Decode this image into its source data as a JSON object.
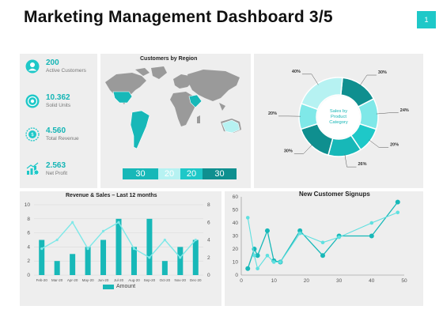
{
  "header": {
    "title": "Marketing Management Dashboard 3/5",
    "page_number": "1"
  },
  "colors": {
    "accent": "#1ec8c8",
    "teal_dark": "#0f8f8f",
    "teal": "#17b8b8",
    "teal_light": "#7fe8e8",
    "teal_pale": "#b6f2f2"
  },
  "kpis": [
    {
      "value": "200",
      "label": "Active Customers",
      "icon": "customer-icon"
    },
    {
      "value": "10.362",
      "label": "Solid Units",
      "icon": "target-icon"
    },
    {
      "value": "4.560",
      "label": "Total Revenue",
      "icon": "revenue-icon"
    },
    {
      "value": "2.563",
      "label": "Net Profit",
      "icon": "profit-chart-icon"
    }
  ],
  "map": {
    "title": "Customers by Region",
    "segments": [
      "30",
      "20",
      "20",
      "30"
    ]
  },
  "chart_data": [
    {
      "type": "pie",
      "variant": "donut",
      "center_label": "Sales by Product Category",
      "values": [
        30,
        24,
        20,
        26,
        30,
        20,
        40
      ],
      "labels": [
        "30%",
        "24%",
        "20%",
        "26%",
        "30%",
        "20%",
        "40%"
      ],
      "colors": [
        "#0f8f8f",
        "#7fe8e8",
        "#1ec8c8",
        "#17b8b8",
        "#0f8f8f",
        "#7fe8e8",
        "#b6f2f2"
      ]
    },
    {
      "type": "bar",
      "title": "Revenue & Sales – Last 12 months",
      "categories": [
        "Feb-20",
        "Mar-20",
        "Apr-20",
        "May-20",
        "Jun-20",
        "Jul-20",
        "Aug-20",
        "Sep-20",
        "Oct-20",
        "Nov-20",
        "Dec-20"
      ],
      "series": [
        {
          "name": "Amount",
          "kind": "bar",
          "axis": "left",
          "values": [
            5,
            2,
            3,
            4,
            5,
            8,
            4,
            8,
            2,
            4,
            5
          ]
        },
        {
          "kind": "line",
          "axis": "right",
          "values": [
            3,
            4,
            6,
            3,
            5,
            6,
            3,
            2,
            4,
            2,
            4
          ]
        }
      ],
      "ylim_left": [
        0,
        10
      ],
      "yticks_left": [
        0,
        2,
        4,
        6,
        8,
        10
      ],
      "ylim_right": [
        0,
        8
      ],
      "yticks_right": [
        0,
        2,
        4,
        6,
        8
      ],
      "legend": "bottom"
    },
    {
      "type": "line",
      "title": "New Customer Signups",
      "series": [
        {
          "x": [
            2,
            4,
            5,
            8,
            10,
            12,
            18,
            25,
            30,
            40,
            48
          ],
          "y": [
            5,
            20,
            15,
            34,
            11,
            10,
            34,
            15,
            30,
            30,
            56
          ]
        },
        {
          "x": [
            2,
            4,
            5,
            8,
            10,
            12,
            18,
            25,
            30,
            40,
            48
          ],
          "y": [
            44,
            15,
            5,
            15,
            10,
            10,
            32,
            25,
            29,
            40,
            48
          ]
        }
      ],
      "xlim": [
        0,
        50
      ],
      "xticks": [
        0,
        10,
        20,
        30,
        40,
        50
      ],
      "ylim": [
        0,
        60
      ],
      "yticks": [
        0,
        10,
        20,
        30,
        40,
        50,
        60
      ]
    }
  ]
}
